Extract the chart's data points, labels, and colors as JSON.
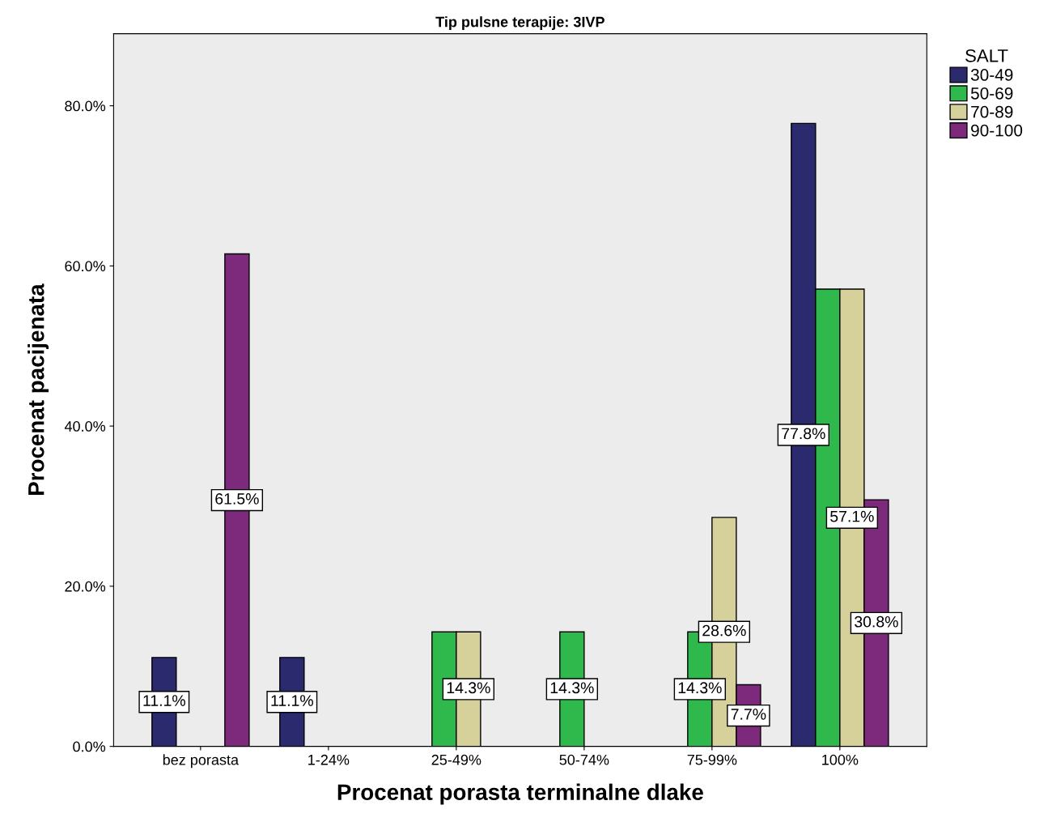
{
  "chart_data": {
    "type": "bar",
    "title": "Tip pulsne terapije: 3IVP",
    "xlabel": "Procenat porasta terminalne dlake",
    "ylabel": "Procenat pacijenata",
    "legend_title": "SALT",
    "legend": "top right",
    "categories": [
      "bez porasta",
      "1-24%",
      "25-49%",
      "50-74%",
      "75-99%",
      "100%"
    ],
    "ylim": [
      0,
      89
    ],
    "yticks": [
      {
        "value": 0,
        "label": "0.0%"
      },
      {
        "value": 20,
        "label": "20.0%"
      },
      {
        "value": 40,
        "label": "40.0%"
      },
      {
        "value": 60,
        "label": "60.0%"
      },
      {
        "value": 80,
        "label": "80.0%"
      }
    ],
    "grid": false,
    "series": [
      {
        "name": "30-49",
        "color": "#2b2a6e",
        "values": [
          11.1,
          11.1,
          null,
          null,
          null,
          77.8
        ],
        "value_labels": [
          "11.1%",
          "11.1%",
          null,
          null,
          null,
          "77.8%"
        ]
      },
      {
        "name": "50-69",
        "color": "#2fb84b",
        "values": [
          null,
          null,
          14.3,
          14.3,
          14.3,
          57.1
        ],
        "value_labels": [
          null,
          null,
          null,
          "14.3%",
          "14.3%",
          null
        ]
      },
      {
        "name": "70-89",
        "color": "#d6d09b",
        "values": [
          null,
          null,
          14.3,
          null,
          28.6,
          57.1
        ],
        "value_labels": [
          null,
          null,
          "14.3%",
          null,
          "28.6%",
          "57.1%"
        ]
      },
      {
        "name": "90-100",
        "color": "#7d2a7c",
        "values": [
          61.5,
          null,
          null,
          null,
          7.7,
          30.8
        ],
        "value_labels": [
          "61.5%",
          null,
          null,
          null,
          "7.7%",
          "30.8%"
        ]
      }
    ]
  }
}
